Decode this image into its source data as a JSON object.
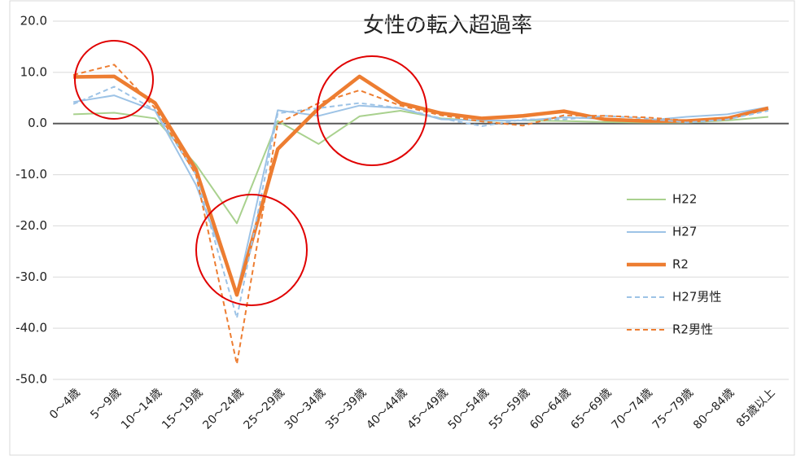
{
  "chart_data": {
    "type": "line",
    "title": "女性の転入超過率",
    "categories": [
      "0〜4歳",
      "5〜9歳",
      "10〜14歳",
      "15〜19歳",
      "20〜24歳",
      "25〜29歳",
      "30〜34歳",
      "35〜39歳",
      "40〜44歳",
      "45〜49歳",
      "50〜54歳",
      "55〜59歳",
      "60〜64歳",
      "65〜69歳",
      "70〜74歳",
      "75〜79歳",
      "80〜84歳",
      "85歳以上"
    ],
    "series": [
      {
        "name": "H22",
        "color": "#a9d18e",
        "style": "solid",
        "thick": false,
        "values": [
          1.8,
          2.1,
          1.0,
          -8,
          -19.5,
          0.5,
          -4,
          1.4,
          2.5,
          1.0,
          0.5,
          0.6,
          0.5,
          0.3,
          0.2,
          0.2,
          0.6,
          1.3
        ]
      },
      {
        "name": "H27",
        "color": "#9dc3e6",
        "style": "solid",
        "thick": false,
        "values": [
          4.2,
          5.5,
          2.5,
          -12,
          -33,
          2.6,
          1.5,
          3.5,
          3.0,
          0.8,
          0.6,
          0.6,
          1.2,
          0.9,
          0.6,
          1.3,
          1.8,
          3.2
        ]
      },
      {
        "name": "R2",
        "color": "#ed7d31",
        "style": "solid",
        "thick": true,
        "values": [
          9.1,
          9.2,
          4.0,
          -9,
          -33.5,
          -5,
          3,
          9.2,
          4.0,
          2.0,
          1.0,
          1.5,
          2.4,
          0.8,
          0.5,
          0.5,
          1.0,
          3.0
        ]
      },
      {
        "name": "H27男性",
        "color": "#9dc3e6",
        "style": "dashed",
        "thick": false,
        "values": [
          3.8,
          7.2,
          2.6,
          -10,
          -38,
          2,
          3,
          4,
          3,
          1.0,
          -0.5,
          0.8,
          0.8,
          1.5,
          1.0,
          0.2,
          0.8,
          2.5
        ]
      },
      {
        "name": "R2男性",
        "color": "#ed7d31",
        "style": "dashed",
        "thick": false,
        "values": [
          9.5,
          11.5,
          3,
          -10,
          -47,
          0,
          4,
          6.5,
          3.5,
          1.6,
          0.4,
          -0.4,
          1.6,
          1.5,
          1.2,
          0.6,
          1.2,
          2.8
        ]
      }
    ],
    "ylim": [
      -50,
      20
    ],
    "yticks": [
      {
        "value": -50,
        "label": "-50.0"
      },
      {
        "value": -40,
        "label": "-40.0"
      },
      {
        "value": -30,
        "label": "-30.0"
      },
      {
        "value": -20,
        "label": "-20.0"
      },
      {
        "value": -10,
        "label": "-10.0"
      },
      {
        "value": 0,
        "label": "0.0"
      },
      {
        "value": 10,
        "label": "10.0"
      },
      {
        "value": 20,
        "label": "20.0"
      }
    ],
    "grid": true,
    "legend": "right"
  }
}
